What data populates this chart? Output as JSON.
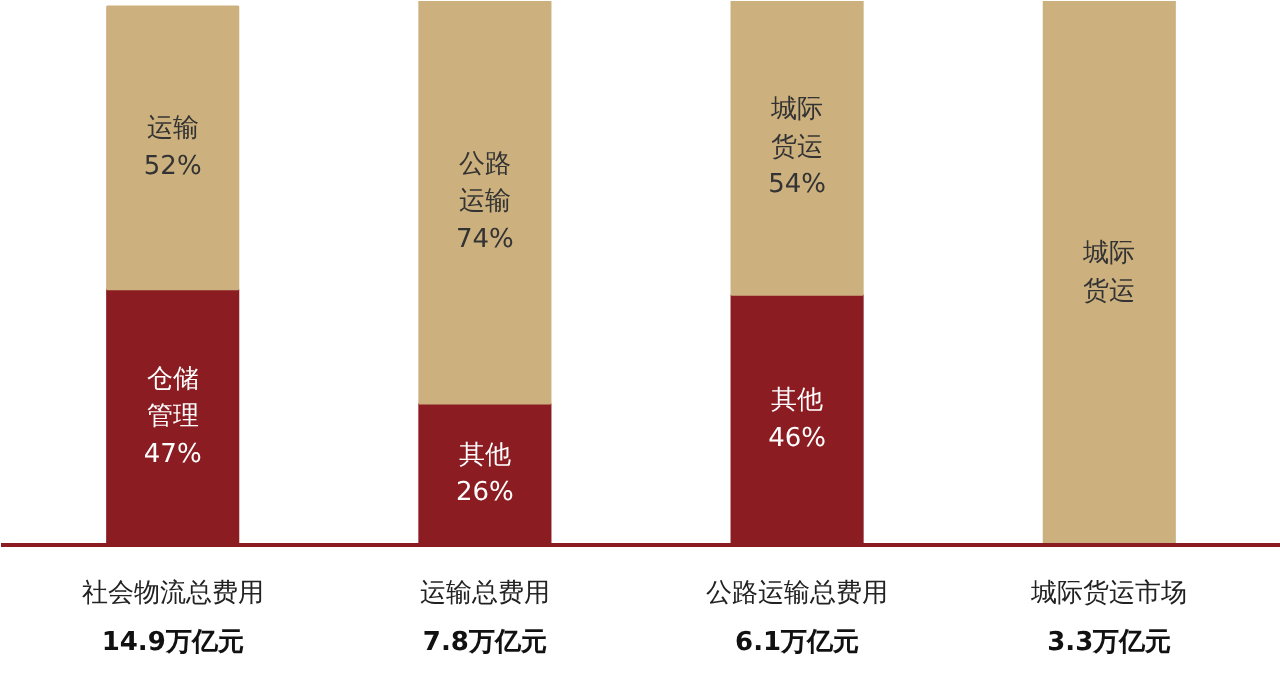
{
  "chart_data": {
    "type": "bar",
    "stacked": true,
    "categories": [
      "社会物流总费用\n14.9万亿元",
      "运输总费用\n7.8万亿元",
      "公路运输总费用\n6.1万亿元",
      "城际货运市场\n3.3万亿元"
    ],
    "series": [
      {
        "color": "#8b1c22",
        "values": [
          47,
          26,
          46,
          null
        ],
        "value_labels": [
          "仓储管理\n47%",
          "其他\n26%",
          "其他\n46%",
          null
        ]
      },
      {
        "color": "#ccb17f",
        "values": [
          52,
          74,
          54,
          100
        ],
        "value_labels": [
          "运输\n52%",
          "公路运输\n74%",
          "城际货运\n54%",
          "城际货运"
        ]
      }
    ]
  }
}
